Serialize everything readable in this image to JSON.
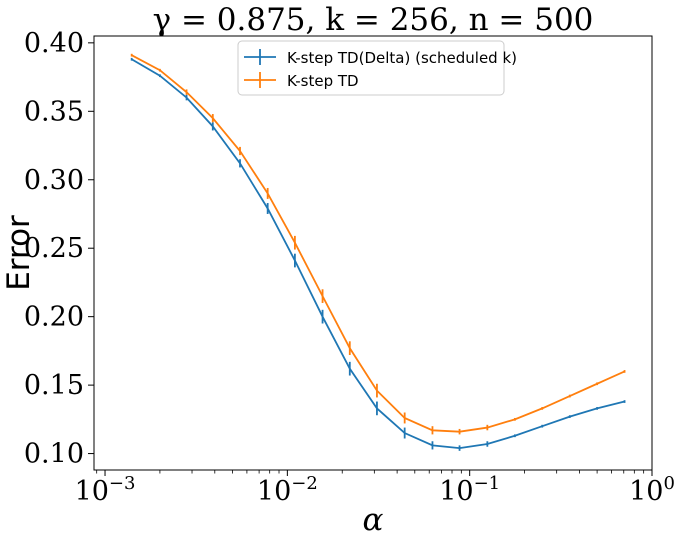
{
  "chart_data": {
    "type": "line",
    "title": "γ = 0.875, k = 256, n = 500",
    "xlabel": "α",
    "ylabel": "Error",
    "xscale": "log",
    "xlim": [
      0.00087,
      1.0
    ],
    "ylim": [
      0.088,
      0.405
    ],
    "x_ticks": [
      {
        "value": 0.001,
        "base": "10",
        "exp": "−3"
      },
      {
        "value": 0.01,
        "base": "10",
        "exp": "−2"
      },
      {
        "value": 0.1,
        "base": "10",
        "exp": "−1"
      },
      {
        "value": 1.0,
        "base": "10",
        "exp": "0"
      }
    ],
    "y_ticks": [
      0.1,
      0.15,
      0.2,
      0.25,
      0.3,
      0.35,
      0.4
    ],
    "y_tick_labels": [
      "0.10",
      "0.15",
      "0.20",
      "0.25",
      "0.30",
      "0.35",
      "0.40"
    ],
    "grid": false,
    "legend_position": "top-center",
    "x": [
      0.0014,
      0.002,
      0.0028,
      0.0039,
      0.0055,
      0.0078,
      0.011,
      0.0156,
      0.022,
      0.031,
      0.044,
      0.0625,
      0.088,
      0.125,
      0.177,
      0.25,
      0.354,
      0.5,
      0.707
    ],
    "series": [
      {
        "name": "K-step TD(Delta) (scheduled k)",
        "color": "#1f77b4",
        "values": [
          0.388,
          0.376,
          0.36,
          0.339,
          0.312,
          0.279,
          0.241,
          0.2,
          0.162,
          0.133,
          0.115,
          0.106,
          0.104,
          0.107,
          0.113,
          0.12,
          0.127,
          0.133,
          0.138
        ],
        "errors": [
          0.001,
          0.001,
          0.002,
          0.003,
          0.003,
          0.004,
          0.005,
          0.005,
          0.005,
          0.005,
          0.004,
          0.003,
          0.002,
          0.002,
          0.001,
          0.001,
          0.001,
          0.001,
          0.001
        ]
      },
      {
        "name": "K-step TD",
        "color": "#ff7f0e",
        "values": [
          0.391,
          0.38,
          0.364,
          0.345,
          0.321,
          0.29,
          0.254,
          0.215,
          0.177,
          0.146,
          0.126,
          0.117,
          0.116,
          0.119,
          0.125,
          0.133,
          0.142,
          0.151,
          0.16
        ],
        "errors": [
          0.001,
          0.001,
          0.002,
          0.003,
          0.003,
          0.004,
          0.005,
          0.005,
          0.005,
          0.005,
          0.004,
          0.003,
          0.002,
          0.002,
          0.001,
          0.001,
          0.001,
          0.001,
          0.001
        ]
      }
    ]
  }
}
